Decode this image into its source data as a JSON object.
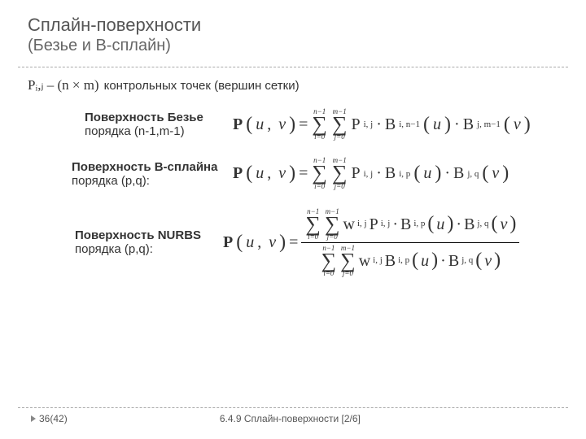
{
  "title": {
    "main": "Сплайн-поверхности",
    "sub": "(Безье и В-сплайн)"
  },
  "intro": {
    "prefix_math": "Pᵢ,ⱼ – (n × m)",
    "text": "контрольных точек (вершин сетки)"
  },
  "sections": {
    "bezier": {
      "name": "Поверхность Безье",
      "order": "порядка (n-1,m-1)",
      "formula": {
        "lhs_fn": "P",
        "lhs_args": "(u, v)",
        "eq": "=",
        "sum1_top": "n−1",
        "sum1_bot": "i=0",
        "sum2_top": "m−1",
        "sum2_bot": "j=0",
        "term_P": "P",
        "term_P_sub": "i, j",
        "dot": "·",
        "term_B1": "B",
        "term_B1_sub": "i, n−1",
        "arg_u": "(u)",
        "term_B2": "B",
        "term_B2_sub": "j, m−1",
        "arg_v": "(v)"
      }
    },
    "bspline": {
      "name": "Поверхность В-сплайна",
      "order": "порядка (p,q):",
      "formula": {
        "lhs_fn": "P",
        "lhs_args": "(u, v)",
        "eq": "=",
        "sum1_top": "n−1",
        "sum1_bot": "i=0",
        "sum2_top": "m−1",
        "sum2_bot": "j=0",
        "term_P": "P",
        "term_P_sub": "i, j",
        "dot": "·",
        "term_B1": "B",
        "term_B1_sub": "i, p",
        "arg_u": "(u)",
        "term_B2": "B",
        "term_B2_sub": "j, q",
        "arg_v": "(v)"
      }
    },
    "nurbs": {
      "name": "Поверхность NURBS",
      "order": "порядка (p,q):",
      "formula": {
        "lhs_fn": "P",
        "lhs_args": "(u, v)",
        "eq": "=",
        "num_sum1_top": "n−1",
        "num_sum1_bot": "i=0",
        "num_sum2_top": "m−1",
        "num_sum2_bot": "j=0",
        "num_w": "w",
        "num_w_sub": "i, j",
        "num_P": "P",
        "num_P_sub": "i, j",
        "dot": "·",
        "num_B1": "B",
        "num_B1_sub": "i, p",
        "arg_u": "(u)",
        "num_B2": "B",
        "num_B2_sub": "j, q",
        "arg_v": "(v)",
        "den_sum1_top": "n−1",
        "den_sum1_bot": "i=0",
        "den_sum2_top": "m−1",
        "den_sum2_bot": "j=0",
        "den_w": "w",
        "den_w_sub": "i, j",
        "den_B1": "B",
        "den_B1_sub": "i, p",
        "den_B2": "B",
        "den_B2_sub": "j, q"
      }
    }
  },
  "footer": {
    "page": "36(42)",
    "section": "6.4.9 Сплайн-поверхности  [2/6]"
  },
  "colors": {
    "text": "#333333",
    "title": "#555555",
    "divider": "#aaaaaa",
    "triangle": "#888888",
    "background": "#ffffff"
  },
  "typography": {
    "body_font": "Arial",
    "math_font": "Times New Roman",
    "title_size_pt": 22,
    "body_size_pt": 15,
    "formula_size_pt": 20,
    "footer_size_pt": 12
  }
}
